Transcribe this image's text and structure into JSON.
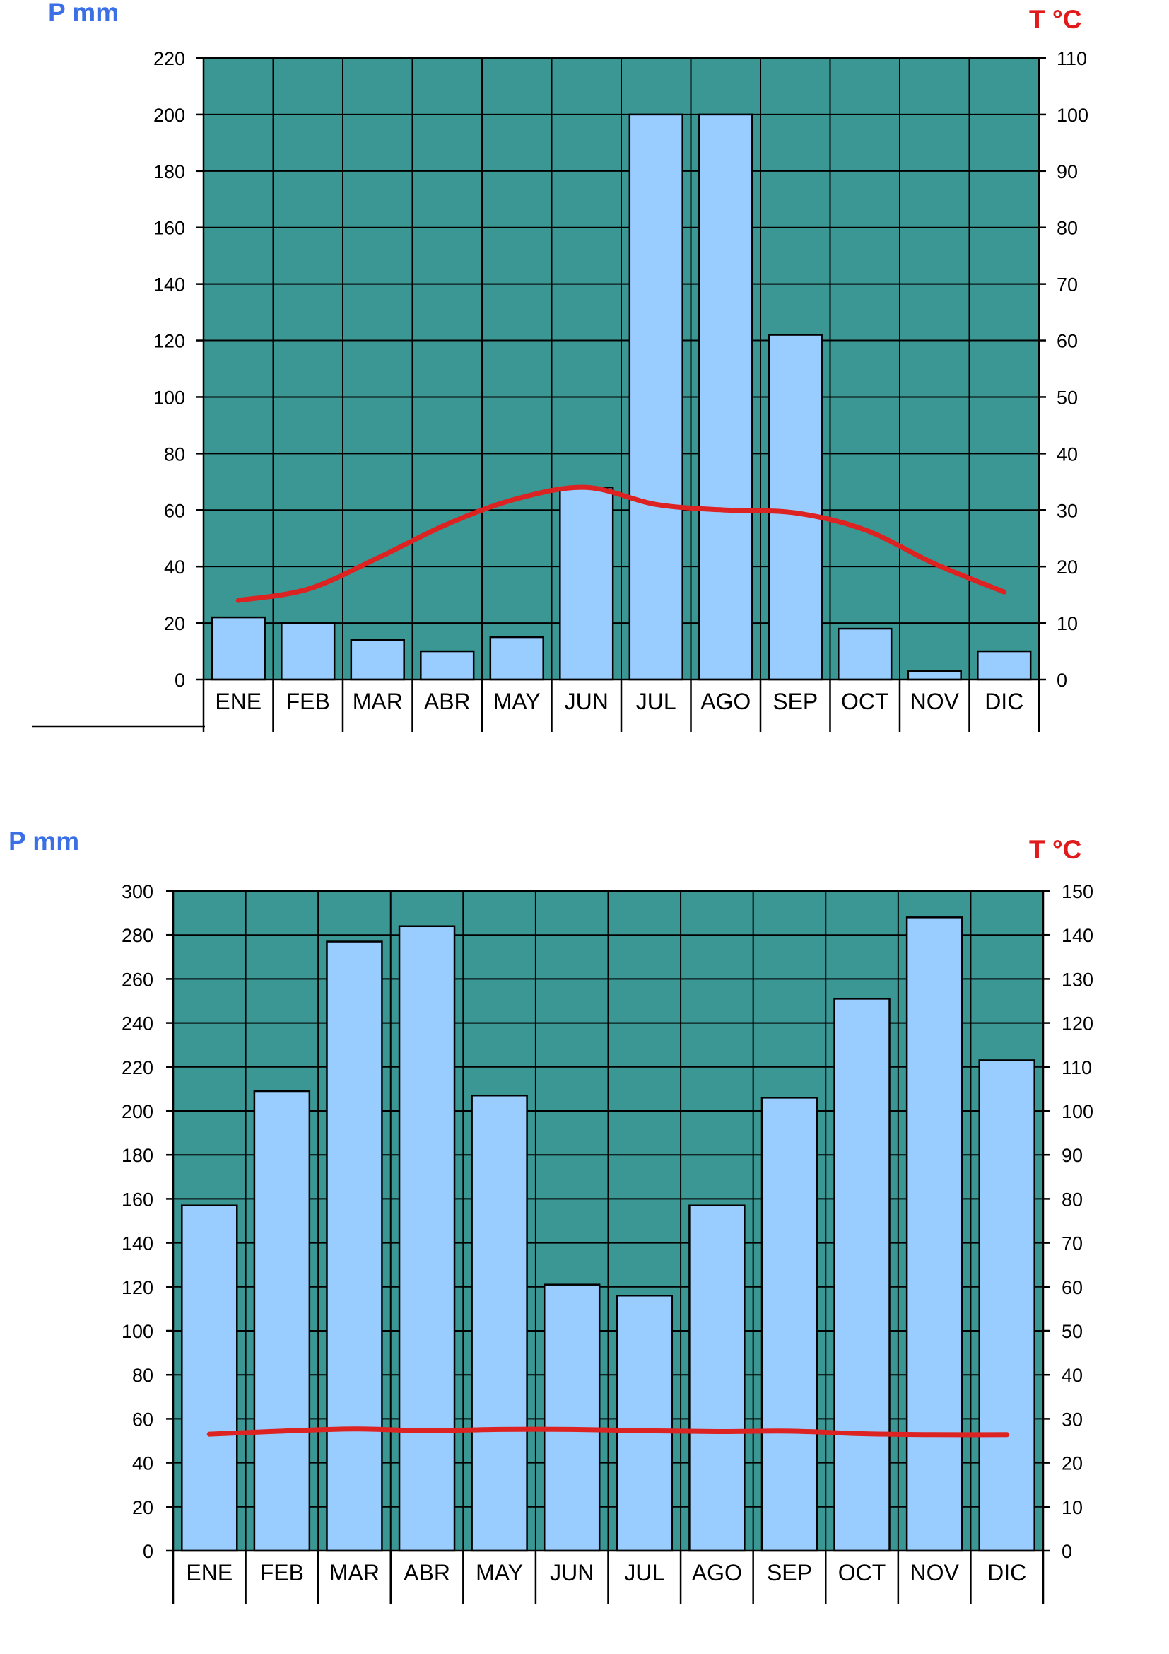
{
  "colors": {
    "precip_unit": "#3a6fe6",
    "temp_unit": "#e11b1b",
    "plot_background": "#3a9793",
    "bar_fill": "#99ccff",
    "temp_line": "#dd2222"
  },
  "chart_data": [
    {
      "type": "bar",
      "left_axis_label": "P mm",
      "right_axis_label": "T °C",
      "categories": [
        "ENE",
        "FEB",
        "MAR",
        "ABR",
        "MAY",
        "JUN",
        "JUL",
        "AGO",
        "SEP",
        "OCT",
        "NOV",
        "DIC"
      ],
      "series": [
        {
          "axis": "left",
          "kind": "bar",
          "values": [
            22,
            20,
            14,
            10,
            15,
            68,
            200,
            200,
            122,
            18,
            3,
            10
          ]
        },
        {
          "axis": "right",
          "kind": "line",
          "values": [
            14,
            16,
            21.5,
            27.5,
            32,
            34,
            31,
            30,
            29.5,
            26.5,
            20.5,
            15.5
          ]
        }
      ],
      "left_ylim": [
        0,
        220
      ],
      "left_ticks": [
        "0",
        "20",
        "40",
        "60",
        "80",
        "100",
        "120",
        "140",
        "160",
        "180",
        "200",
        "220"
      ],
      "right_ylim": [
        0,
        110
      ],
      "right_ticks": [
        "0",
        "10",
        "20",
        "30",
        "40",
        "50",
        "60",
        "70",
        "80",
        "90",
        "100",
        "110"
      ],
      "grid": true
    },
    {
      "type": "bar",
      "left_axis_label": "P mm",
      "right_axis_label": "T °C",
      "categories": [
        "ENE",
        "FEB",
        "MAR",
        "ABR",
        "MAY",
        "JUN",
        "JUL",
        "AGO",
        "SEP",
        "OCT",
        "NOV",
        "DIC"
      ],
      "series": [
        {
          "axis": "left",
          "kind": "bar",
          "values": [
            157,
            209,
            277,
            284,
            207,
            121,
            116,
            157,
            206,
            251,
            288,
            223
          ]
        },
        {
          "axis": "right",
          "kind": "line",
          "values": [
            26.5,
            27.2,
            27.7,
            27.3,
            27.6,
            27.6,
            27.3,
            27.1,
            27.2,
            26.6,
            26.4,
            26.4
          ]
        }
      ],
      "left_ylim": [
        0,
        300
      ],
      "left_ticks": [
        "0",
        "20",
        "40",
        "60",
        "80",
        "100",
        "120",
        "140",
        "160",
        "180",
        "200",
        "220",
        "240",
        "260",
        "280",
        "300"
      ],
      "right_ylim": [
        0,
        150
      ],
      "right_ticks": [
        "0",
        "10",
        "20",
        "30",
        "40",
        "50",
        "60",
        "70",
        "80",
        "90",
        "100",
        "110",
        "120",
        "130",
        "140",
        "150"
      ],
      "grid": true
    }
  ]
}
